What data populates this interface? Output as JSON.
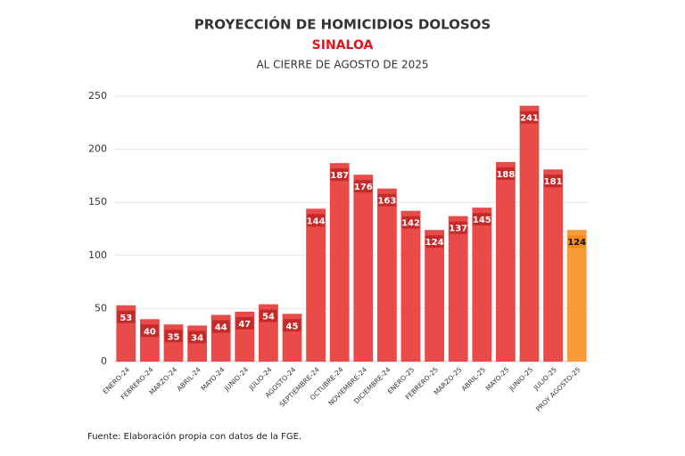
{
  "chart_data": {
    "type": "bar",
    "title": "PROYECCIÓN DE HOMICIDIOS DOLOSOS",
    "subtitle": "SINALOA",
    "subtitle2": "AL CIERRE DE AGOSTO DE 2025",
    "source": "Fuente: Elaboración propia con datos de la FGE.",
    "categories": [
      "ENERO-24",
      "FEBRERO-24",
      "MARZO-24",
      "ABRIL-24",
      "MAYO-24",
      "JUNIO-24",
      "JULIO-24",
      "AGOSTO-24",
      "SEPTIEMBRE-24",
      "OCTUBRE-24",
      "NOVIEMBRE-24",
      "DICIEMBRE-24",
      "ENERO-25",
      "FEBRERO-25",
      "MARZO-25",
      "ABRIL-25",
      "MAYO-25",
      "JUNIO-25",
      "JULIO-25",
      "PROY AGOSTO-25"
    ],
    "values": [
      53,
      40,
      35,
      34,
      44,
      47,
      54,
      45,
      144,
      187,
      176,
      163,
      142,
      124,
      137,
      145,
      188,
      241,
      181,
      124
    ],
    "colors": [
      "#e8413f",
      "#e8413f",
      "#e8413f",
      "#e8413f",
      "#e8413f",
      "#e8413f",
      "#e8413f",
      "#e8413f",
      "#e8413f",
      "#e8413f",
      "#e8413f",
      "#e8413f",
      "#e8413f",
      "#e8413f",
      "#e8413f",
      "#e8413f",
      "#e8413f",
      "#e8413f",
      "#e8413f",
      "#f7962f"
    ],
    "ylim": [
      0,
      250
    ],
    "yticks": [
      0,
      50,
      100,
      150,
      200,
      250
    ],
    "grid": true
  }
}
